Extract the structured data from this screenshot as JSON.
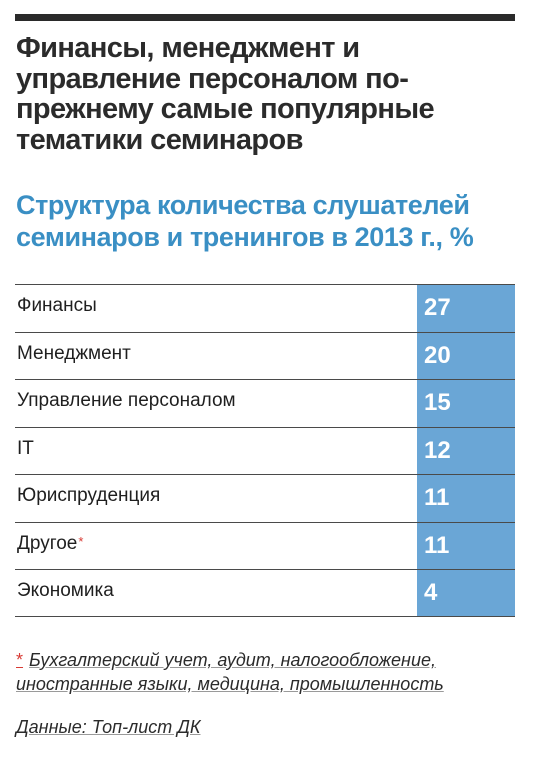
{
  "headline": "Финансы, менеджмент и управление персоналом по-прежнему самые популярные тематики семинаров",
  "chart_data": {
    "type": "table",
    "title": "Структура количества слушателей семинаров и тренингов в 2013 г., %",
    "categories": [
      "Финансы",
      "Менеджмент",
      "Управление персоналом",
      "IT",
      "Юриспруденция",
      "Другое",
      "Экономика"
    ],
    "values": [
      27,
      20,
      15,
      12,
      11,
      11,
      4
    ],
    "footnote_marker_on": "Другое",
    "colors": {
      "value_cell": "#6aa6d6",
      "title": "#3a8fc4",
      "asterisk": "#d83a34"
    }
  },
  "footnote": {
    "marker": "*",
    "text": "Бухгалтерский учет, аудит, налогообложение, иностранные языки, медицина, промышленность"
  },
  "source": "Данные: Топ-лист ДК"
}
